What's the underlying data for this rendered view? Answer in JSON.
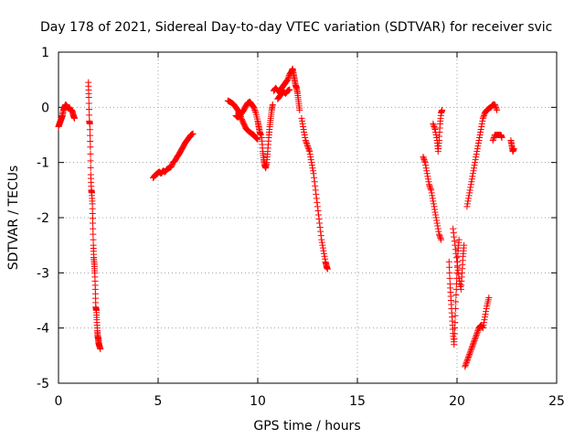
{
  "chart_data": {
    "type": "scatter",
    "title": "Day 178 of 2021, Sidereal Day-to-day VTEC variation (SDTVAR) for receiver svic",
    "xlabel": "GPS time / hours",
    "ylabel": "SDTVAR / TECUs",
    "xlim": [
      0,
      25
    ],
    "ylim": [
      -5,
      1
    ],
    "xticks": [
      0,
      5,
      10,
      15,
      20,
      25
    ],
    "yticks": [
      -5,
      -4,
      -3,
      -2,
      -1,
      0,
      1
    ],
    "grid": true,
    "marker": "+",
    "series_color": "#ff0000",
    "series": [
      {
        "name": "SDTVAR",
        "segments": [
          [
            [
              0.0,
              -0.35
            ],
            [
              0.05,
              -0.3
            ],
            [
              0.1,
              -0.25
            ],
            [
              0.15,
              -0.2
            ],
            [
              0.2,
              -0.15
            ],
            [
              0.25,
              -0.05
            ],
            [
              0.3,
              0.0
            ],
            [
              0.35,
              0.05
            ],
            [
              0.4,
              0.03
            ],
            [
              0.45,
              0.0
            ],
            [
              0.5,
              -0.02
            ],
            [
              0.55,
              0.0
            ],
            [
              0.6,
              -0.05
            ],
            [
              0.65,
              -0.05
            ],
            [
              0.7,
              -0.08
            ],
            [
              0.75,
              -0.15
            ],
            [
              0.8,
              -0.2
            ]
          ],
          [
            [
              1.5,
              0.45
            ],
            [
              1.52,
              0.18
            ],
            [
              1.55,
              -0.25
            ],
            [
              1.57,
              -0.3
            ],
            [
              1.6,
              -0.72
            ],
            [
              1.62,
              -1.22
            ],
            [
              1.65,
              -1.5
            ],
            [
              1.67,
              -1.55
            ],
            [
              1.7,
              -1.75
            ],
            [
              1.72,
              -2.1
            ],
            [
              1.75,
              -2.5
            ],
            [
              1.77,
              -2.72
            ],
            [
              1.8,
              -2.85
            ],
            [
              1.82,
              -3.0
            ],
            [
              1.85,
              -3.3
            ],
            [
              1.87,
              -3.62
            ],
            [
              1.9,
              -3.68
            ],
            [
              1.92,
              -3.85
            ],
            [
              1.95,
              -4.05
            ],
            [
              1.97,
              -4.15
            ],
            [
              2.0,
              -4.2
            ],
            [
              2.02,
              -4.28
            ],
            [
              2.05,
              -4.32
            ],
            [
              2.1,
              -4.38
            ]
          ],
          [
            [
              4.75,
              -1.28
            ],
            [
              4.85,
              -1.23
            ],
            [
              4.95,
              -1.2
            ],
            [
              5.05,
              -1.17
            ],
            [
              5.15,
              -1.2
            ],
            [
              5.25,
              -1.15
            ],
            [
              5.35,
              -1.17
            ],
            [
              5.45,
              -1.12
            ],
            [
              5.55,
              -1.1
            ],
            [
              5.65,
              -1.08
            ],
            [
              5.75,
              -1.0
            ],
            [
              5.85,
              -0.97
            ],
            [
              5.95,
              -0.9
            ],
            [
              6.05,
              -0.85
            ],
            [
              6.15,
              -0.78
            ],
            [
              6.25,
              -0.72
            ],
            [
              6.35,
              -0.65
            ],
            [
              6.45,
              -0.6
            ],
            [
              6.55,
              -0.55
            ],
            [
              6.65,
              -0.5
            ],
            [
              6.75,
              -0.48
            ]
          ],
          [
            [
              8.5,
              0.12
            ],
            [
              8.6,
              0.1
            ],
            [
              8.7,
              0.08
            ],
            [
              8.8,
              0.05
            ],
            [
              8.9,
              0.0
            ],
            [
              9.0,
              -0.05
            ],
            [
              9.1,
              -0.12
            ],
            [
              9.2,
              -0.22
            ],
            [
              9.3,
              -0.3
            ],
            [
              9.4,
              -0.38
            ],
            [
              9.5,
              -0.42
            ],
            [
              9.6,
              -0.45
            ],
            [
              9.7,
              -0.48
            ],
            [
              9.8,
              -0.5
            ],
            [
              9.9,
              -0.55
            ],
            [
              10.0,
              -0.58
            ]
          ],
          [
            [
              8.9,
              -0.15
            ],
            [
              9.0,
              -0.18
            ],
            [
              9.1,
              -0.15
            ],
            [
              9.2,
              -0.1
            ],
            [
              9.3,
              -0.05
            ],
            [
              9.4,
              0.02
            ],
            [
              9.5,
              0.08
            ],
            [
              9.6,
              0.1
            ],
            [
              9.7,
              0.05
            ],
            [
              9.8,
              0.0
            ],
            [
              9.9,
              -0.1
            ],
            [
              10.0,
              -0.25
            ],
            [
              10.05,
              -0.35
            ],
            [
              10.1,
              -0.45
            ],
            [
              10.15,
              -0.5
            ]
          ],
          [
            [
              10.2,
              -0.55
            ],
            [
              10.25,
              -0.8
            ],
            [
              10.3,
              -0.95
            ],
            [
              10.35,
              -1.05
            ],
            [
              10.4,
              -1.1
            ],
            [
              10.45,
              -1.0
            ],
            [
              10.5,
              -0.8
            ],
            [
              10.55,
              -0.55
            ],
            [
              10.6,
              -0.35
            ],
            [
              10.65,
              -0.2
            ],
            [
              10.7,
              -0.05
            ],
            [
              10.75,
              0.05
            ]
          ],
          [
            [
              10.8,
              0.3
            ],
            [
              10.9,
              0.35
            ],
            [
              11.0,
              0.3
            ],
            [
              11.1,
              0.28
            ],
            [
              11.2,
              0.35
            ],
            [
              11.3,
              0.4
            ],
            [
              11.4,
              0.45
            ],
            [
              11.5,
              0.5
            ],
            [
              11.6,
              0.6
            ],
            [
              11.7,
              0.65
            ],
            [
              11.75,
              0.7
            ],
            [
              11.8,
              0.6
            ],
            [
              11.85,
              0.5
            ],
            [
              11.9,
              0.4
            ],
            [
              11.95,
              0.35
            ],
            [
              12.0,
              0.25
            ],
            [
              12.05,
              0.1
            ],
            [
              12.1,
              -0.05
            ]
          ],
          [
            [
              11.0,
              0.15
            ],
            [
              11.1,
              0.2
            ],
            [
              11.2,
              0.25
            ],
            [
              11.3,
              0.28
            ],
            [
              11.4,
              0.25
            ],
            [
              11.5,
              0.3
            ],
            [
              11.6,
              0.32
            ]
          ],
          [
            [
              12.2,
              -0.2
            ],
            [
              12.3,
              -0.4
            ],
            [
              12.4,
              -0.6
            ],
            [
              12.5,
              -0.7
            ],
            [
              12.6,
              -0.8
            ],
            [
              12.7,
              -1.0
            ],
            [
              12.8,
              -1.2
            ],
            [
              12.9,
              -1.5
            ],
            [
              13.0,
              -1.8
            ],
            [
              13.1,
              -2.1
            ],
            [
              13.2,
              -2.4
            ],
            [
              13.3,
              -2.6
            ],
            [
              13.4,
              -2.8
            ],
            [
              13.45,
              -2.88
            ],
            [
              13.5,
              -2.93
            ]
          ],
          [
            [
              18.3,
              -0.9
            ],
            [
              18.4,
              -1.0
            ],
            [
              18.5,
              -1.2
            ],
            [
              18.6,
              -1.4
            ],
            [
              18.7,
              -1.5
            ],
            [
              18.8,
              -1.7
            ],
            [
              18.9,
              -1.9
            ],
            [
              19.0,
              -2.1
            ],
            [
              19.1,
              -2.3
            ],
            [
              19.2,
              -2.4
            ]
          ],
          [
            [
              18.8,
              -0.3
            ],
            [
              18.9,
              -0.4
            ],
            [
              19.0,
              -0.6
            ],
            [
              19.05,
              -0.8
            ],
            [
              19.1,
              -0.6
            ],
            [
              19.15,
              -0.3
            ],
            [
              19.2,
              -0.1
            ],
            [
              19.25,
              -0.05
            ]
          ],
          [
            [
              19.6,
              -2.8
            ],
            [
              19.65,
              -3.2
            ],
            [
              19.7,
              -3.5
            ],
            [
              19.75,
              -3.8
            ],
            [
              19.8,
              -4.1
            ],
            [
              19.85,
              -4.3
            ],
            [
              19.9,
              -3.9
            ],
            [
              19.95,
              -3.4
            ],
            [
              20.0,
              -3.0
            ],
            [
              20.05,
              -2.6
            ],
            [
              20.1,
              -2.4
            ]
          ],
          [
            [
              19.8,
              -2.2
            ],
            [
              19.9,
              -2.5
            ],
            [
              20.0,
              -2.8
            ],
            [
              20.1,
              -3.1
            ],
            [
              20.2,
              -3.3
            ],
            [
              20.25,
              -3.0
            ],
            [
              20.3,
              -2.7
            ],
            [
              20.35,
              -2.5
            ]
          ],
          [
            [
              20.4,
              -4.7
            ],
            [
              20.5,
              -4.6
            ],
            [
              20.6,
              -4.5
            ],
            [
              20.7,
              -4.4
            ],
            [
              20.8,
              -4.3
            ],
            [
              20.9,
              -4.2
            ],
            [
              21.0,
              -4.1
            ],
            [
              21.1,
              -4.0
            ],
            [
              21.2,
              -3.95
            ],
            [
              21.3,
              -4.0
            ],
            [
              21.4,
              -3.8
            ],
            [
              21.5,
              -3.6
            ],
            [
              21.6,
              -3.45
            ]
          ],
          [
            [
              20.5,
              -1.8
            ],
            [
              20.6,
              -1.6
            ],
            [
              20.7,
              -1.4
            ],
            [
              20.8,
              -1.2
            ],
            [
              20.9,
              -1.0
            ],
            [
              21.0,
              -0.8
            ],
            [
              21.1,
              -0.6
            ],
            [
              21.2,
              -0.4
            ],
            [
              21.3,
              -0.2
            ],
            [
              21.4,
              -0.1
            ],
            [
              21.5,
              -0.05
            ],
            [
              21.6,
              -0.02
            ],
            [
              21.7,
              0.0
            ],
            [
              21.8,
              0.05
            ],
            [
              21.9,
              0.05
            ],
            [
              22.0,
              -0.05
            ]
          ],
          [
            [
              21.8,
              -0.6
            ],
            [
              21.9,
              -0.5
            ],
            [
              22.0,
              -0.5
            ],
            [
              22.1,
              -0.5
            ],
            [
              22.2,
              -0.5
            ],
            [
              22.25,
              -0.55
            ]
          ],
          [
            [
              22.7,
              -0.6
            ],
            [
              22.75,
              -0.7
            ],
            [
              22.8,
              -0.8
            ],
            [
              22.85,
              -0.75
            ]
          ]
        ]
      }
    ]
  }
}
